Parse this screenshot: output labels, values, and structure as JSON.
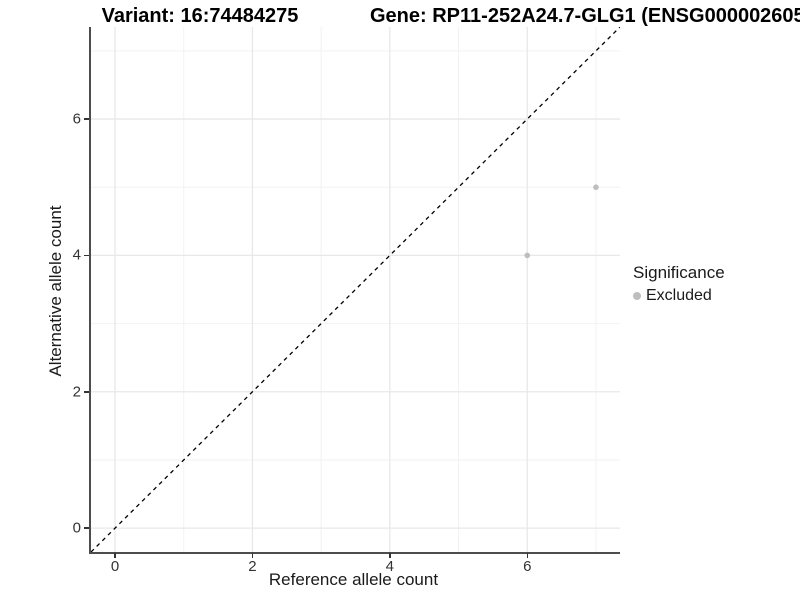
{
  "figure": {
    "title_variant": "Variant: 16:74484275",
    "title_gene": "Gene: RP11-252A24.7-GLG1 (ENSG000002605",
    "background": "#ffffff"
  },
  "chart_data": {
    "type": "scatter",
    "title_left": "Variant: 16:74484275",
    "title_right": "Gene: RP11-252A24.7-GLG1 (ENSG000002605",
    "xlabel": "Reference allele count",
    "ylabel": "Alternative allele count",
    "xlim": [
      -0.35,
      7.35
    ],
    "ylim": [
      -0.35,
      7.35
    ],
    "x_ticks": [
      0,
      2,
      4,
      6
    ],
    "y_ticks": [
      0,
      2,
      4,
      6
    ],
    "x_minor_ticks": [
      1,
      3,
      5,
      7
    ],
    "y_minor_ticks": [
      1,
      3,
      5,
      7
    ],
    "grid": true,
    "points": [
      {
        "x": 6,
        "y": 4,
        "significance": "Excluded"
      },
      {
        "x": 7,
        "y": 5,
        "significance": "Excluded"
      }
    ],
    "reference_line": {
      "kind": "identity",
      "style": "dashed",
      "color": "#000000"
    },
    "legend": {
      "title": "Significance",
      "position": "right",
      "entries": [
        {
          "label": "Excluded",
          "color": "#bebebe"
        }
      ]
    },
    "colors": {
      "point": "#bebebe",
      "grid_major": "#e8e8e8",
      "grid_minor": "#f2f2f2",
      "axis_line": "#4d4d4d",
      "tick_text": "#333333"
    }
  }
}
